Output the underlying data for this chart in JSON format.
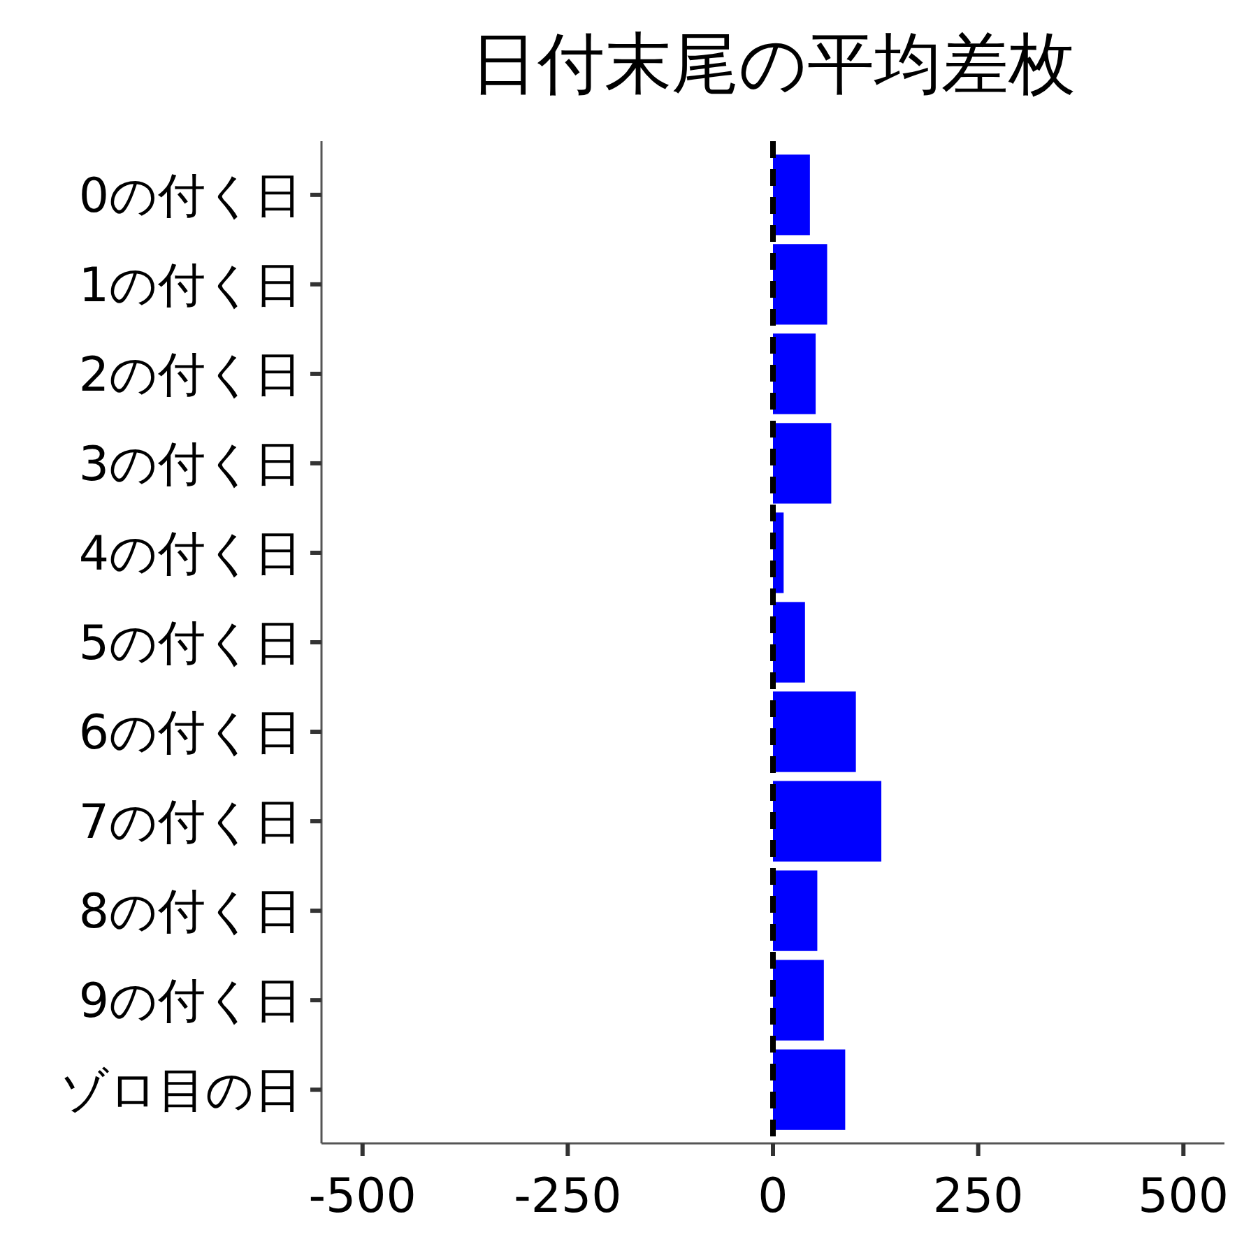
{
  "chart_data": {
    "type": "bar",
    "orientation": "horizontal",
    "title": "日付末尾の平均差枚",
    "categories": [
      "0の付く日",
      "1の付く日",
      "2の付く日",
      "3の付く日",
      "4の付く日",
      "5の付く日",
      "6の付く日",
      "7の付く日",
      "8の付く日",
      "9の付く日",
      "ゾロ目の日"
    ],
    "values": [
      45,
      66,
      52,
      71,
      13,
      39,
      101,
      132,
      54,
      62,
      88
    ],
    "color": "#0000ff",
    "xlim": [
      -550,
      550
    ],
    "xticks": [
      -500,
      -250,
      0,
      250,
      500
    ],
    "ref_lines": [
      {
        "axis": "x",
        "value": 0,
        "line_style": "dashed",
        "color": "#000000"
      }
    ]
  }
}
